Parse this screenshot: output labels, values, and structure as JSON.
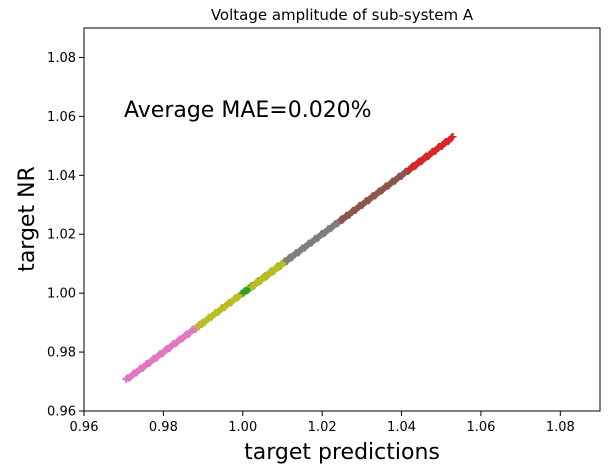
{
  "chart_data": {
    "type": "scatter",
    "title": "Voltage amplitude of sub-system A",
    "xlabel": "target predictions",
    "ylabel": "target NR",
    "annotation": "Average MAE=0.020%",
    "xlim": [
      0.96,
      1.09
    ],
    "ylim": [
      0.96,
      1.09
    ],
    "xticks": [
      "0.96",
      "0.98",
      "1.00",
      "1.02",
      "1.04",
      "1.06",
      "1.08"
    ],
    "yticks": [
      "0.96",
      "0.98",
      "1.00",
      "1.02",
      "1.04",
      "1.06",
      "1.08"
    ],
    "grid": false,
    "marker": "+",
    "series": [
      {
        "color": "#e377c2",
        "x_range": [
          0.9705,
          0.99
        ]
      },
      {
        "color": "#bcbd22",
        "x_range": [
          0.9885,
          1.002
        ]
      },
      {
        "color": "#2ca02c",
        "x_range": [
          1.0,
          1.012
        ]
      },
      {
        "color": "#bcbd22",
        "x_range": [
          1.002,
          1.012
        ]
      },
      {
        "color": "#7f7f7f",
        "x_range": [
          1.011,
          1.0255
        ]
      },
      {
        "color": "#8c564b",
        "x_range": [
          1.0245,
          1.047
        ]
      },
      {
        "color": "#d62728",
        "x_range": [
          1.042,
          1.053
        ]
      }
    ]
  }
}
